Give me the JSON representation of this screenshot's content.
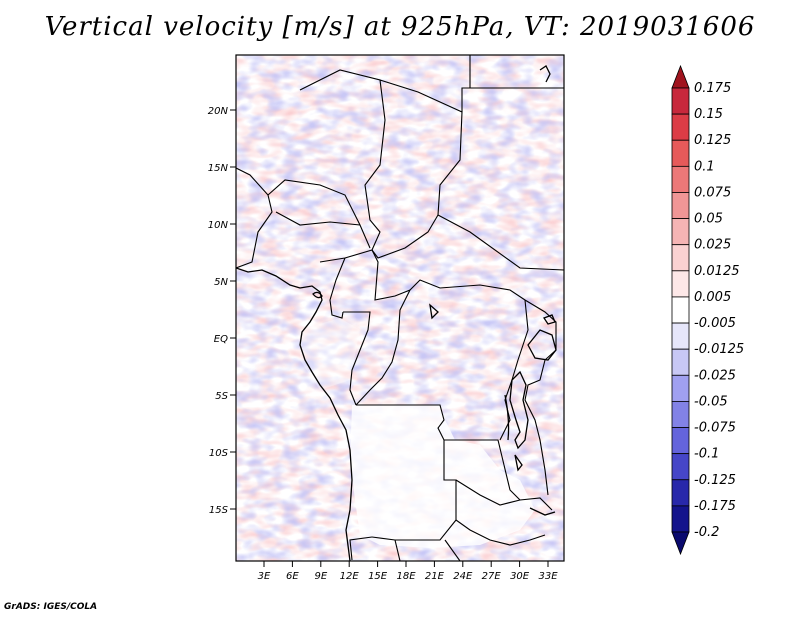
{
  "title": "Vertical velocity [m/s] at 925hPa, VT: 2019031606",
  "credit": "GrADS: IGES/COLA",
  "lat_ticks": [
    "20N",
    "15N",
    "10N",
    "5N",
    "EQ",
    "5S",
    "10S",
    "15S"
  ],
  "lon_ticks": [
    "3E",
    "6E",
    "9E",
    "12E",
    "15E",
    "18E",
    "21E",
    "24E",
    "27E",
    "30E",
    "33E"
  ],
  "colorbar": {
    "labels": [
      "0.175",
      "0.15",
      "0.125",
      "0.1",
      "0.075",
      "0.05",
      "0.025",
      "0.0125",
      "0.005",
      "-0.005",
      "-0.0125",
      "-0.025",
      "-0.05",
      "-0.075",
      "-0.1",
      "-0.125",
      "-0.175",
      "-0.2"
    ],
    "colors": [
      "#a0141e",
      "#c8283c",
      "#dc3c46",
      "#e65a5a",
      "#ec7878",
      "#f09696",
      "#f5b4b4",
      "#fad2d2",
      "#fde8e8",
      "#ffffff",
      "#e6e6fa",
      "#c8c8f5",
      "#a0a0f0",
      "#8282e6",
      "#6464dc",
      "#4646c8",
      "#2828aa",
      "#14148c",
      "#0a0a6e"
    ]
  }
}
